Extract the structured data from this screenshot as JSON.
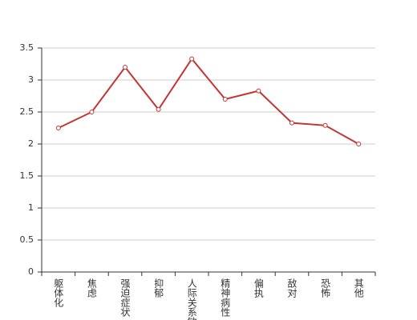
{
  "chart_data": {
    "type": "line",
    "categories": [
      "躯体化",
      "焦虑",
      "强迫症状",
      "抑郁",
      "人际关系敏感",
      "精神病性",
      "偏执",
      "敌对",
      "恐怖",
      "其他"
    ],
    "values": [
      2.25,
      2.5,
      3.2,
      2.54,
      3.33,
      2.7,
      2.83,
      2.33,
      2.29,
      2.0
    ],
    "color": "#c23531",
    "ylim": [
      0,
      3.5
    ],
    "yticks": [
      0,
      0.5,
      1,
      1.5,
      2,
      2.5,
      3,
      3.5
    ],
    "grid": true
  }
}
